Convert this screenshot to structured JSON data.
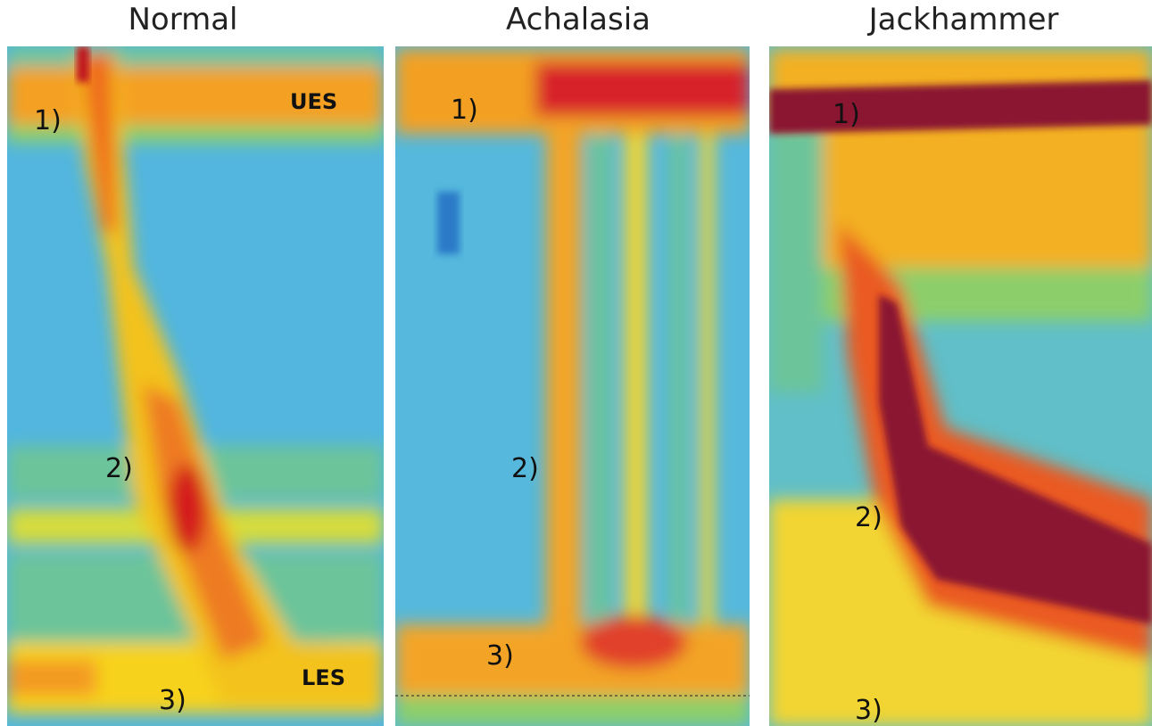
{
  "panels": [
    {
      "title": "Normal",
      "labels": [
        "UES",
        "1)",
        "2)",
        "LES",
        "3)"
      ]
    },
    {
      "title": "Achalasia",
      "labels": [
        "1)",
        "2)",
        "3)"
      ]
    },
    {
      "title": "Jackhammer",
      "labels": [
        "1)",
        "2)",
        "3)"
      ]
    }
  ]
}
